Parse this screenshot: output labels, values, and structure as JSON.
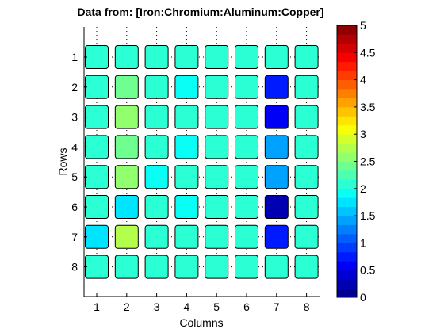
{
  "chart_data": {
    "type": "heatmap",
    "title": "Data from: [Iron:Chromium:Aluminum:Copper]",
    "xlabel": "Columns",
    "ylabel": "Rows",
    "x_ticks": [
      "1",
      "2",
      "3",
      "4",
      "5",
      "6",
      "7",
      "8"
    ],
    "y_ticks": [
      "1",
      "2",
      "3",
      "4",
      "5",
      "6",
      "7",
      "8"
    ],
    "values": [
      [
        2.0,
        2.0,
        2.0,
        2.0,
        2.0,
        2.0,
        2.0,
        2.0
      ],
      [
        2.0,
        2.4,
        2.0,
        1.9,
        2.0,
        2.0,
        0.8,
        2.0
      ],
      [
        2.0,
        2.5,
        2.0,
        2.0,
        2.0,
        2.0,
        0.6,
        2.0
      ],
      [
        2.0,
        2.4,
        2.0,
        1.9,
        2.0,
        2.0,
        1.4,
        2.0
      ],
      [
        2.0,
        2.5,
        1.9,
        2.0,
        2.0,
        2.0,
        1.4,
        2.0
      ],
      [
        2.0,
        1.8,
        2.0,
        1.9,
        2.0,
        2.0,
        0.3,
        2.0
      ],
      [
        1.8,
        2.8,
        2.0,
        2.0,
        2.0,
        2.0,
        0.8,
        2.0
      ],
      [
        2.0,
        2.0,
        2.0,
        2.0,
        2.0,
        2.0,
        2.0,
        2.0
      ]
    ],
    "clim": [
      0,
      5
    ],
    "colorbar": {
      "ticks": [
        "0",
        "0.5",
        "1",
        "1.5",
        "2",
        "2.5",
        "3",
        "3.5",
        "4",
        "4.5",
        "5"
      ],
      "levels": 30,
      "colormap": "jet"
    },
    "grid": true,
    "grid_style": "dotted"
  }
}
